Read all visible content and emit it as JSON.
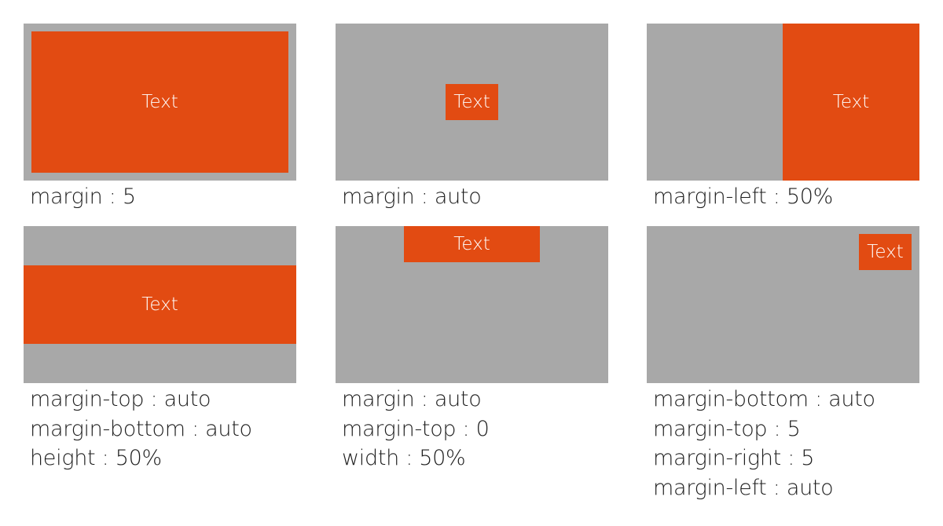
{
  "panels": [
    {
      "inner_text": "Text",
      "caption": [
        "margin : 5"
      ]
    },
    {
      "inner_text": "Text",
      "caption": [
        "margin : auto"
      ]
    },
    {
      "inner_text": "Text",
      "caption": [
        "margin-left : 50%"
      ]
    },
    {
      "inner_text": "Text",
      "caption": [
        "margin-top : auto",
        "margin-bottom : auto",
        "height : 50%"
      ]
    },
    {
      "inner_text": "Text",
      "caption": [
        "margin : auto",
        "margin-top : 0",
        "width : 50%"
      ]
    },
    {
      "inner_text": "Text",
      "caption": [
        "margin-bottom : auto",
        "margin-top : 5",
        "margin-right : 5",
        "margin-left : auto"
      ]
    }
  ],
  "colors": {
    "container": "#a8a8a8",
    "child": "#e24b12",
    "child_text": "#ffffff",
    "caption_text": "#1e1e1e"
  }
}
